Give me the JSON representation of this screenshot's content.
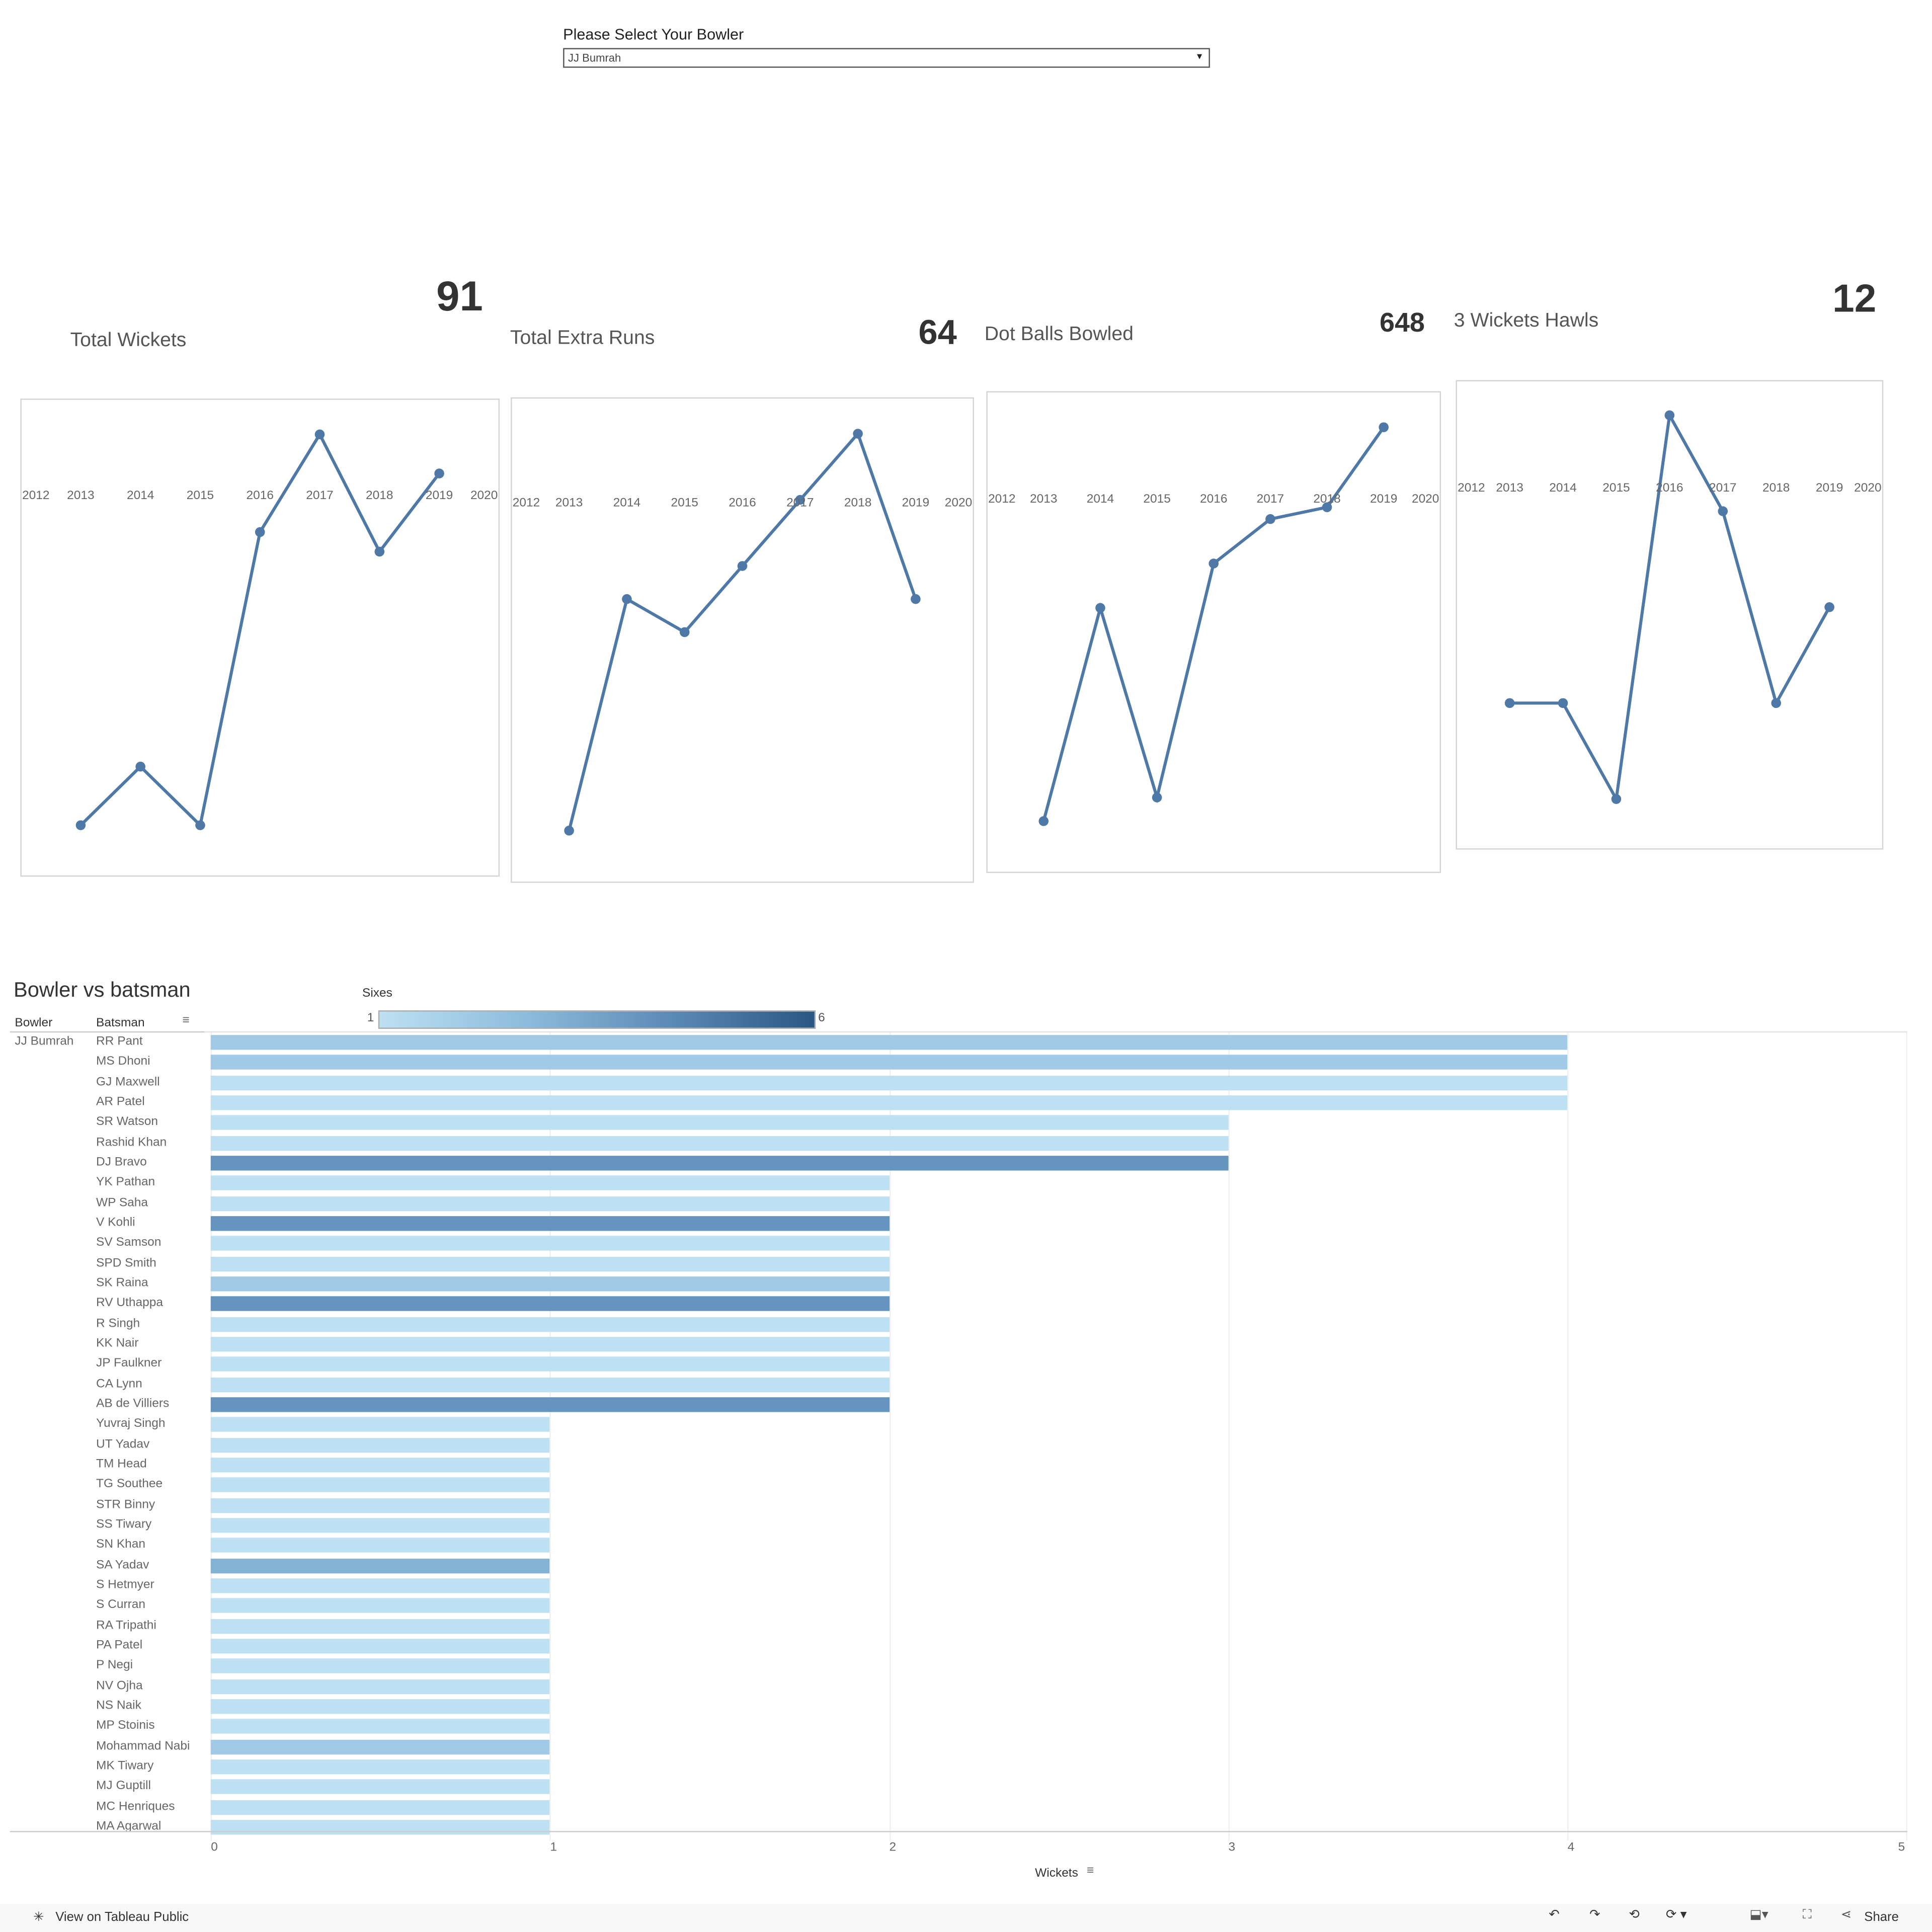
{
  "filter": {
    "label": "Please Select Your Bowler",
    "selected": "JJ Bumrah"
  },
  "line_color": "#4e79a7",
  "chart_data": [
    {
      "type": "line",
      "title": "Total Wickets",
      "kpi": "91",
      "x": [
        2013,
        2014,
        2015,
        2016,
        2017,
        2018,
        2019
      ],
      "y": [
        3,
        6,
        3,
        18,
        23,
        17,
        21
      ],
      "xticks": [
        "2012",
        "2013",
        "2014",
        "2015",
        "2016",
        "2017",
        "2018",
        "2019",
        "2020"
      ],
      "xlim": [
        2012,
        2020
      ]
    },
    {
      "type": "line",
      "title": "Total Extra Runs",
      "kpi": "64",
      "x": [
        2013,
        2014,
        2015,
        2016,
        2017,
        2018,
        2019
      ],
      "y": [
        2,
        9,
        8,
        10,
        12,
        14,
        9
      ],
      "xticks": [
        "2012",
        "2013",
        "2014",
        "2015",
        "2016",
        "2017",
        "2018",
        "2019",
        "2020"
      ],
      "xlim": [
        2012,
        2020
      ]
    },
    {
      "type": "line",
      "title": "Dot Balls Bowled",
      "kpi": "648",
      "x": [
        2013,
        2014,
        2015,
        2016,
        2017,
        2018,
        2019
      ],
      "y": [
        20,
        92,
        28,
        107,
        122,
        126,
        153
      ],
      "xticks": [
        "2012",
        "2013",
        "2014",
        "2015",
        "2016",
        "2017",
        "2018",
        "2019",
        "2020"
      ],
      "xlim": [
        2012,
        2020
      ]
    },
    {
      "type": "line",
      "title": "3 Wickets Hawls",
      "kpi": "12",
      "x": [
        2013,
        2014,
        2015,
        2016,
        2017,
        2018,
        2019
      ],
      "y": [
        1,
        1,
        0,
        4,
        3,
        1,
        2
      ],
      "xticks": [
        "2012",
        "2013",
        "2014",
        "2015",
        "2016",
        "2017",
        "2018",
        "2019",
        "2020"
      ],
      "xlim": [
        2012,
        2020
      ]
    },
    {
      "type": "bar",
      "title": "Bowler vs batsman",
      "xlabel": "Wickets",
      "xlim": [
        0,
        5
      ],
      "xticks": [
        "0",
        "1",
        "2",
        "3",
        "4",
        "5"
      ],
      "col_headers": [
        "Bowler",
        "Batsman"
      ],
      "bowler": "JJ Bumrah",
      "color_legend": {
        "title": "Sixes",
        "min": "1",
        "max": "6",
        "colors": [
          "#bde0f2",
          "#8dbcdc",
          "#5b8bb6",
          "#2a5783"
        ]
      },
      "rows": [
        {
          "batsman": "RR Pant",
          "wickets": 4,
          "sixes": 2
        },
        {
          "batsman": "MS Dhoni",
          "wickets": 4,
          "sixes": 2
        },
        {
          "batsman": "GJ Maxwell",
          "wickets": 4,
          "sixes": 1
        },
        {
          "batsman": "AR Patel",
          "wickets": 4,
          "sixes": 1
        },
        {
          "batsman": "SR Watson",
          "wickets": 3,
          "sixes": 1
        },
        {
          "batsman": "Rashid Khan",
          "wickets": 3,
          "sixes": 1
        },
        {
          "batsman": "DJ Bravo",
          "wickets": 3,
          "sixes": 4
        },
        {
          "batsman": "YK Pathan",
          "wickets": 2,
          "sixes": 1
        },
        {
          "batsman": "WP Saha",
          "wickets": 2,
          "sixes": 1
        },
        {
          "batsman": "V Kohli",
          "wickets": 2,
          "sixes": 4
        },
        {
          "batsman": "SV Samson",
          "wickets": 2,
          "sixes": 1
        },
        {
          "batsman": "SPD Smith",
          "wickets": 2,
          "sixes": 1
        },
        {
          "batsman": "SK Raina",
          "wickets": 2,
          "sixes": 2
        },
        {
          "batsman": "RV Uthappa",
          "wickets": 2,
          "sixes": 4
        },
        {
          "batsman": "R Singh",
          "wickets": 2,
          "sixes": 1
        },
        {
          "batsman": "KK Nair",
          "wickets": 2,
          "sixes": 1
        },
        {
          "batsman": "JP Faulkner",
          "wickets": 2,
          "sixes": 1
        },
        {
          "batsman": "CA Lynn",
          "wickets": 2,
          "sixes": 1
        },
        {
          "batsman": "AB de Villiers",
          "wickets": 2,
          "sixes": 4
        },
        {
          "batsman": "Yuvraj Singh",
          "wickets": 1,
          "sixes": 1
        },
        {
          "batsman": "UT Yadav",
          "wickets": 1,
          "sixes": 1
        },
        {
          "batsman": "TM Head",
          "wickets": 1,
          "sixes": 1
        },
        {
          "batsman": "TG Southee",
          "wickets": 1,
          "sixes": 1
        },
        {
          "batsman": "STR Binny",
          "wickets": 1,
          "sixes": 1
        },
        {
          "batsman": "SS Tiwary",
          "wickets": 1,
          "sixes": 1
        },
        {
          "batsman": "SN Khan",
          "wickets": 1,
          "sixes": 1
        },
        {
          "batsman": "SA Yadav",
          "wickets": 1,
          "sixes": 3
        },
        {
          "batsman": "S Hetmyer",
          "wickets": 1,
          "sixes": 1
        },
        {
          "batsman": "S Curran",
          "wickets": 1,
          "sixes": 1
        },
        {
          "batsman": "RA Tripathi",
          "wickets": 1,
          "sixes": 1
        },
        {
          "batsman": "PA Patel",
          "wickets": 1,
          "sixes": 1
        },
        {
          "batsman": "P Negi",
          "wickets": 1,
          "sixes": 1
        },
        {
          "batsman": "NV Ojha",
          "wickets": 1,
          "sixes": 1
        },
        {
          "batsman": "NS Naik",
          "wickets": 1,
          "sixes": 1
        },
        {
          "batsman": "MP Stoinis",
          "wickets": 1,
          "sixes": 1
        },
        {
          "batsman": "Mohammad Nabi",
          "wickets": 1,
          "sixes": 2
        },
        {
          "batsman": "MK Tiwary",
          "wickets": 1,
          "sixes": 1
        },
        {
          "batsman": "MJ Guptill",
          "wickets": 1,
          "sixes": 1
        },
        {
          "batsman": "MC Henriques",
          "wickets": 1,
          "sixes": 1
        },
        {
          "batsman": "MA Agarwal",
          "wickets": 1,
          "sixes": 1
        }
      ]
    }
  ],
  "footer": {
    "view_link": "View on Tableau Public",
    "share": "Share",
    "icons": [
      "undo-icon",
      "redo-icon",
      "revert-icon",
      "refresh-icon",
      "download-icon",
      "fullscreen-icon",
      "share-icon"
    ]
  }
}
